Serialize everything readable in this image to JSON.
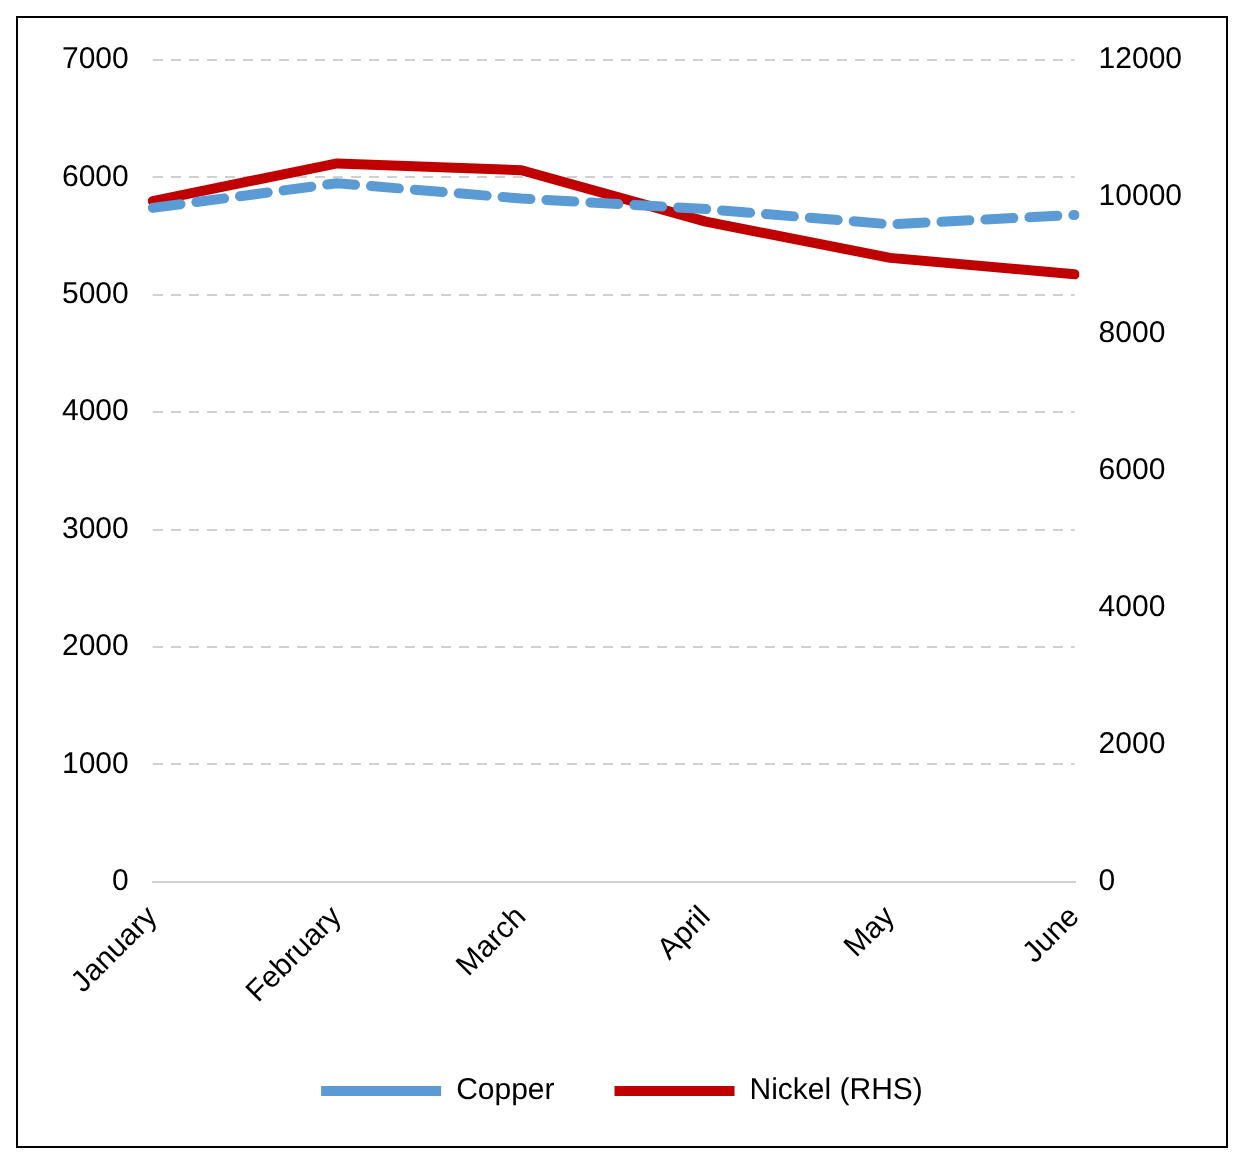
{
  "chart_data": {
    "type": "line",
    "categories": [
      "January",
      "February",
      "March",
      "April",
      "May",
      "June"
    ],
    "series": [
      {
        "name": "Copper",
        "color": "#5b9bd5",
        "values": [
          5740,
          5950,
          5820,
          5730,
          5600,
          5680
        ],
        "line_style": "dashed"
      },
      {
        "name": "Nickel (RHS)",
        "color": "#c00000",
        "values": [
          9940,
          10490,
          10390,
          9640,
          9110,
          8870
        ],
        "axis": "y2",
        "line_style": "solid"
      }
    ],
    "ylim": [
      0,
      7000
    ],
    "yticks": [
      0,
      1000,
      2000,
      3000,
      4000,
      5000,
      6000,
      7000
    ],
    "y2lim": [
      0,
      12000
    ],
    "y2ticks": [
      0,
      2000,
      4000,
      6000,
      8000,
      10000,
      12000
    ],
    "grid": "y",
    "legend": "bottom",
    "marker": "none"
  }
}
